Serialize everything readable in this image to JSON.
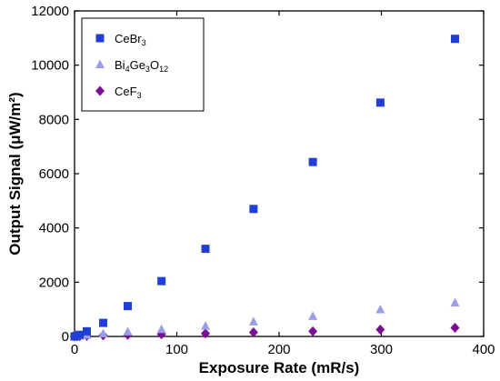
{
  "chart_data": {
    "type": "scatter",
    "xlabel": "Exposure Rate (mR/s)",
    "ylabel": "Output Signal (μW/m²)",
    "xlim": [
      0,
      400
    ],
    "ylim": [
      0,
      12000
    ],
    "xticks": [
      0,
      100,
      200,
      300,
      400
    ],
    "yticks": [
      0,
      2000,
      4000,
      6000,
      8000,
      10000,
      12000
    ],
    "xtick_labels": [
      "0",
      "100",
      "200",
      "300",
      "400"
    ],
    "ytick_labels": [
      "0",
      "2000",
      "4000",
      "6000",
      "8000",
      "10000",
      "12000"
    ],
    "legend_position": "top-left",
    "grid": false,
    "series": [
      {
        "name": "CeBr3",
        "label_parts": [
          [
            "CeBr",
            false
          ],
          [
            "3",
            true
          ]
        ],
        "marker": "square",
        "color": "#1f3fd6",
        "points": [
          [
            0,
            0
          ],
          [
            2,
            20
          ],
          [
            5,
            60
          ],
          [
            12,
            190
          ],
          [
            28,
            500
          ],
          [
            52,
            1120
          ],
          [
            85,
            2040
          ],
          [
            128,
            3230
          ],
          [
            175,
            4700
          ],
          [
            233,
            6430
          ],
          [
            299,
            8620
          ],
          [
            372,
            10970
          ]
        ]
      },
      {
        "name": "Bi4Ge3O12",
        "label_parts": [
          [
            "Bi",
            false
          ],
          [
            "4",
            true
          ],
          [
            "Ge",
            false
          ],
          [
            "3",
            true
          ],
          [
            "O",
            false
          ],
          [
            "12",
            true
          ]
        ],
        "marker": "triangle",
        "color": "#9a9ee6",
        "points": [
          [
            0,
            0
          ],
          [
            2,
            10
          ],
          [
            5,
            20
          ],
          [
            12,
            50
          ],
          [
            28,
            100
          ],
          [
            52,
            170
          ],
          [
            85,
            260
          ],
          [
            128,
            380
          ],
          [
            175,
            540
          ],
          [
            233,
            740
          ],
          [
            299,
            990
          ],
          [
            372,
            1240
          ]
        ]
      },
      {
        "name": "CeF3",
        "label_parts": [
          [
            "CeF",
            false
          ],
          [
            "3",
            true
          ]
        ],
        "marker": "diamond",
        "color": "#7a0f95",
        "points": [
          [
            0,
            0
          ],
          [
            2,
            5
          ],
          [
            5,
            10
          ],
          [
            12,
            20
          ],
          [
            28,
            40
          ],
          [
            52,
            60
          ],
          [
            85,
            80
          ],
          [
            128,
            110
          ],
          [
            175,
            150
          ],
          [
            233,
            190
          ],
          [
            299,
            250
          ],
          [
            372,
            320
          ]
        ]
      }
    ]
  }
}
